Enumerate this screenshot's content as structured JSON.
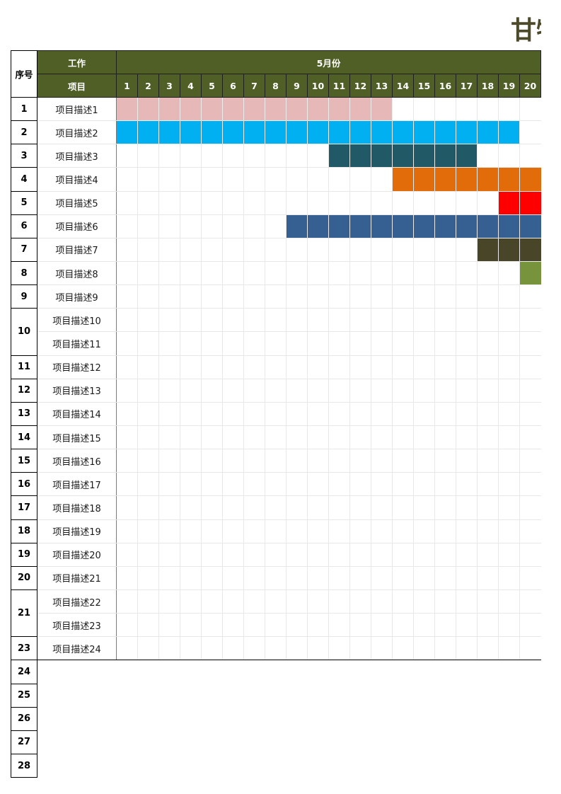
{
  "title": "甘特图",
  "header": {
    "seq_label": "序号",
    "work_label": "工作",
    "project_label": "项目",
    "month_label": "5月份"
  },
  "days": [
    "1",
    "2",
    "3",
    "4",
    "5",
    "6",
    "7",
    "8",
    "9",
    "10",
    "11",
    "12",
    "13",
    "14",
    "15",
    "16",
    "17",
    "18",
    "19",
    "20"
  ],
  "rows": [
    {
      "seq": "1",
      "items": [
        "项目描述1"
      ]
    },
    {
      "seq": "2",
      "items": [
        "项目描述2"
      ]
    },
    {
      "seq": "3",
      "items": [
        "项目描述3"
      ]
    },
    {
      "seq": "4",
      "items": [
        "项目描述4"
      ]
    },
    {
      "seq": "5",
      "items": [
        "项目描述5"
      ]
    },
    {
      "seq": "6",
      "items": [
        "项目描述6"
      ]
    },
    {
      "seq": "7",
      "items": [
        "项目描述7"
      ]
    },
    {
      "seq": "8",
      "items": [
        "项目描述8"
      ]
    },
    {
      "seq": "9",
      "items": [
        "项目描述9"
      ]
    },
    {
      "seq": "10",
      "items": [
        "项目描述10",
        "项目描述11"
      ]
    },
    {
      "seq": "11",
      "items": [
        "项目描述12"
      ]
    },
    {
      "seq": "12",
      "items": [
        "项目描述13"
      ]
    },
    {
      "seq": "13",
      "items": [
        "项目描述14"
      ]
    },
    {
      "seq": "14",
      "items": [
        "项目描述15"
      ]
    },
    {
      "seq": "15",
      "items": [
        "项目描述16"
      ]
    },
    {
      "seq": "16",
      "items": [
        "项目描述17"
      ]
    },
    {
      "seq": "17",
      "items": [
        "项目描述18"
      ]
    },
    {
      "seq": "18",
      "items": [
        "项目描述19"
      ]
    },
    {
      "seq": "19",
      "items": [
        "项目描述20"
      ]
    },
    {
      "seq": "20",
      "items": [
        "项目描述21"
      ]
    },
    {
      "seq": "21",
      "items": [
        "项目描述22",
        "项目描述23"
      ]
    },
    {
      "seq": "23",
      "items": [
        "项目描述24"
      ]
    },
    {
      "seq": "24",
      "items": []
    },
    {
      "seq": "25",
      "items": []
    },
    {
      "seq": "26",
      "items": []
    },
    {
      "seq": "27",
      "items": []
    },
    {
      "seq": "28",
      "items": []
    }
  ],
  "bars": [
    {
      "task": "项目描述1",
      "start_day": 1,
      "end_day": 13,
      "color": "#e6b8b7"
    },
    {
      "task": "项目描述2",
      "start_day": 1,
      "end_day": 19,
      "color": "#00b0f0"
    },
    {
      "task": "项目描述3",
      "start_day": 11,
      "end_day": 17,
      "color": "#215967"
    },
    {
      "task": "项目描述4",
      "start_day": 14,
      "end_day": 20,
      "color": "#e26b0a"
    },
    {
      "task": "项目描述5",
      "start_day": 19,
      "end_day": 20,
      "color": "#ff0000"
    },
    {
      "task": "项目描述6",
      "start_day": 9,
      "end_day": 20,
      "color": "#366092"
    },
    {
      "task": "项目描述7",
      "start_day": 18,
      "end_day": 20,
      "color": "#494529"
    },
    {
      "task": "项目描述8",
      "start_day": 20,
      "end_day": 20,
      "color": "#77933c"
    }
  ],
  "colors": {
    "header_bg": "#4f5f26",
    "title": "#4d4a2b"
  }
}
